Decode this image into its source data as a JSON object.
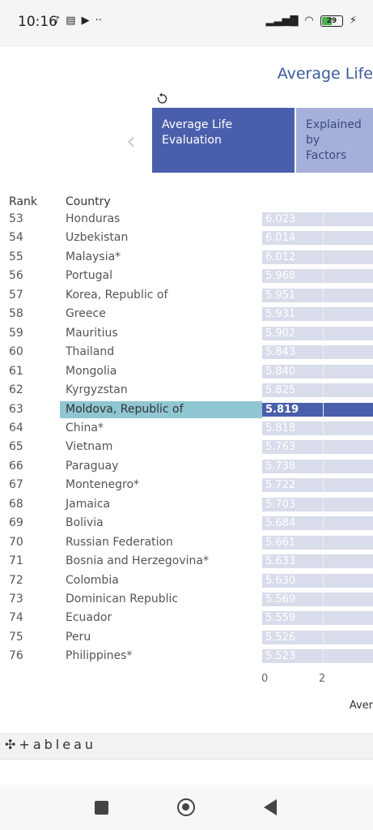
{
  "status_bar": {
    "time": "10:16",
    "icons_left": [
      "tiktok-icon",
      "message-icon",
      "youtube-icon",
      "more-dots-icon"
    ],
    "icons_right": [
      "signal-icon",
      "wifi-icon",
      "battery-icon",
      "charging-icon"
    ],
    "battery_level": "29"
  },
  "page": {
    "title": "Average Life"
  },
  "tabs": [
    {
      "label_line1": "Average Life",
      "label_line2": "Evaluation",
      "active": true
    },
    {
      "label_line1": "Explained by",
      "label_line2": "Factors",
      "active": false
    }
  ],
  "table": {
    "headers": {
      "rank": "Rank",
      "country": "Country"
    },
    "rows": [
      {
        "rank": "53",
        "country": "Honduras",
        "value": "6.023"
      },
      {
        "rank": "54",
        "country": "Uzbekistan",
        "value": "6.014"
      },
      {
        "rank": "55",
        "country": "Malaysia*",
        "value": "6.012"
      },
      {
        "rank": "56",
        "country": "Portugal",
        "value": "5.968"
      },
      {
        "rank": "57",
        "country": "Korea, Republic of",
        "value": "5.951"
      },
      {
        "rank": "58",
        "country": "Greece",
        "value": "5.931"
      },
      {
        "rank": "59",
        "country": "Mauritius",
        "value": "5.902"
      },
      {
        "rank": "60",
        "country": "Thailand",
        "value": "5.843"
      },
      {
        "rank": "61",
        "country": "Mongolia",
        "value": "5.840"
      },
      {
        "rank": "62",
        "country": "Kyrgyzstan",
        "value": "5.825"
      },
      {
        "rank": "63",
        "country": "Moldova, Republic of",
        "value": "5.819",
        "selected": true
      },
      {
        "rank": "64",
        "country": "China*",
        "value": "5.818"
      },
      {
        "rank": "65",
        "country": "Vietnam",
        "value": "5.763"
      },
      {
        "rank": "66",
        "country": "Paraguay",
        "value": "5.738"
      },
      {
        "rank": "67",
        "country": "Montenegro*",
        "value": "5.722"
      },
      {
        "rank": "68",
        "country": "Jamaica",
        "value": "5.703"
      },
      {
        "rank": "69",
        "country": "Bolivia",
        "value": "5.684"
      },
      {
        "rank": "70",
        "country": "Russian Federation",
        "value": "5.661"
      },
      {
        "rank": "71",
        "country": "Bosnia and Herzegovina*",
        "value": "5.633"
      },
      {
        "rank": "72",
        "country": "Colombia",
        "value": "5.630"
      },
      {
        "rank": "73",
        "country": "Dominican Republic",
        "value": "5.569"
      },
      {
        "rank": "74",
        "country": "Ecuador",
        "value": "5.559"
      },
      {
        "rank": "75",
        "country": "Peru",
        "value": "5.526"
      },
      {
        "rank": "76",
        "country": "Philippines*",
        "value": "5.523"
      }
    ],
    "axis_ticks": [
      "0",
      "2"
    ],
    "axis_label": "Aver"
  },
  "footer": {
    "brand": "+ableau"
  },
  "colors": {
    "accent": "#4a5fab",
    "tab_inactive": "#a4b0d9",
    "bar": "#d9dcea",
    "selection": "#8fc6d1"
  }
}
